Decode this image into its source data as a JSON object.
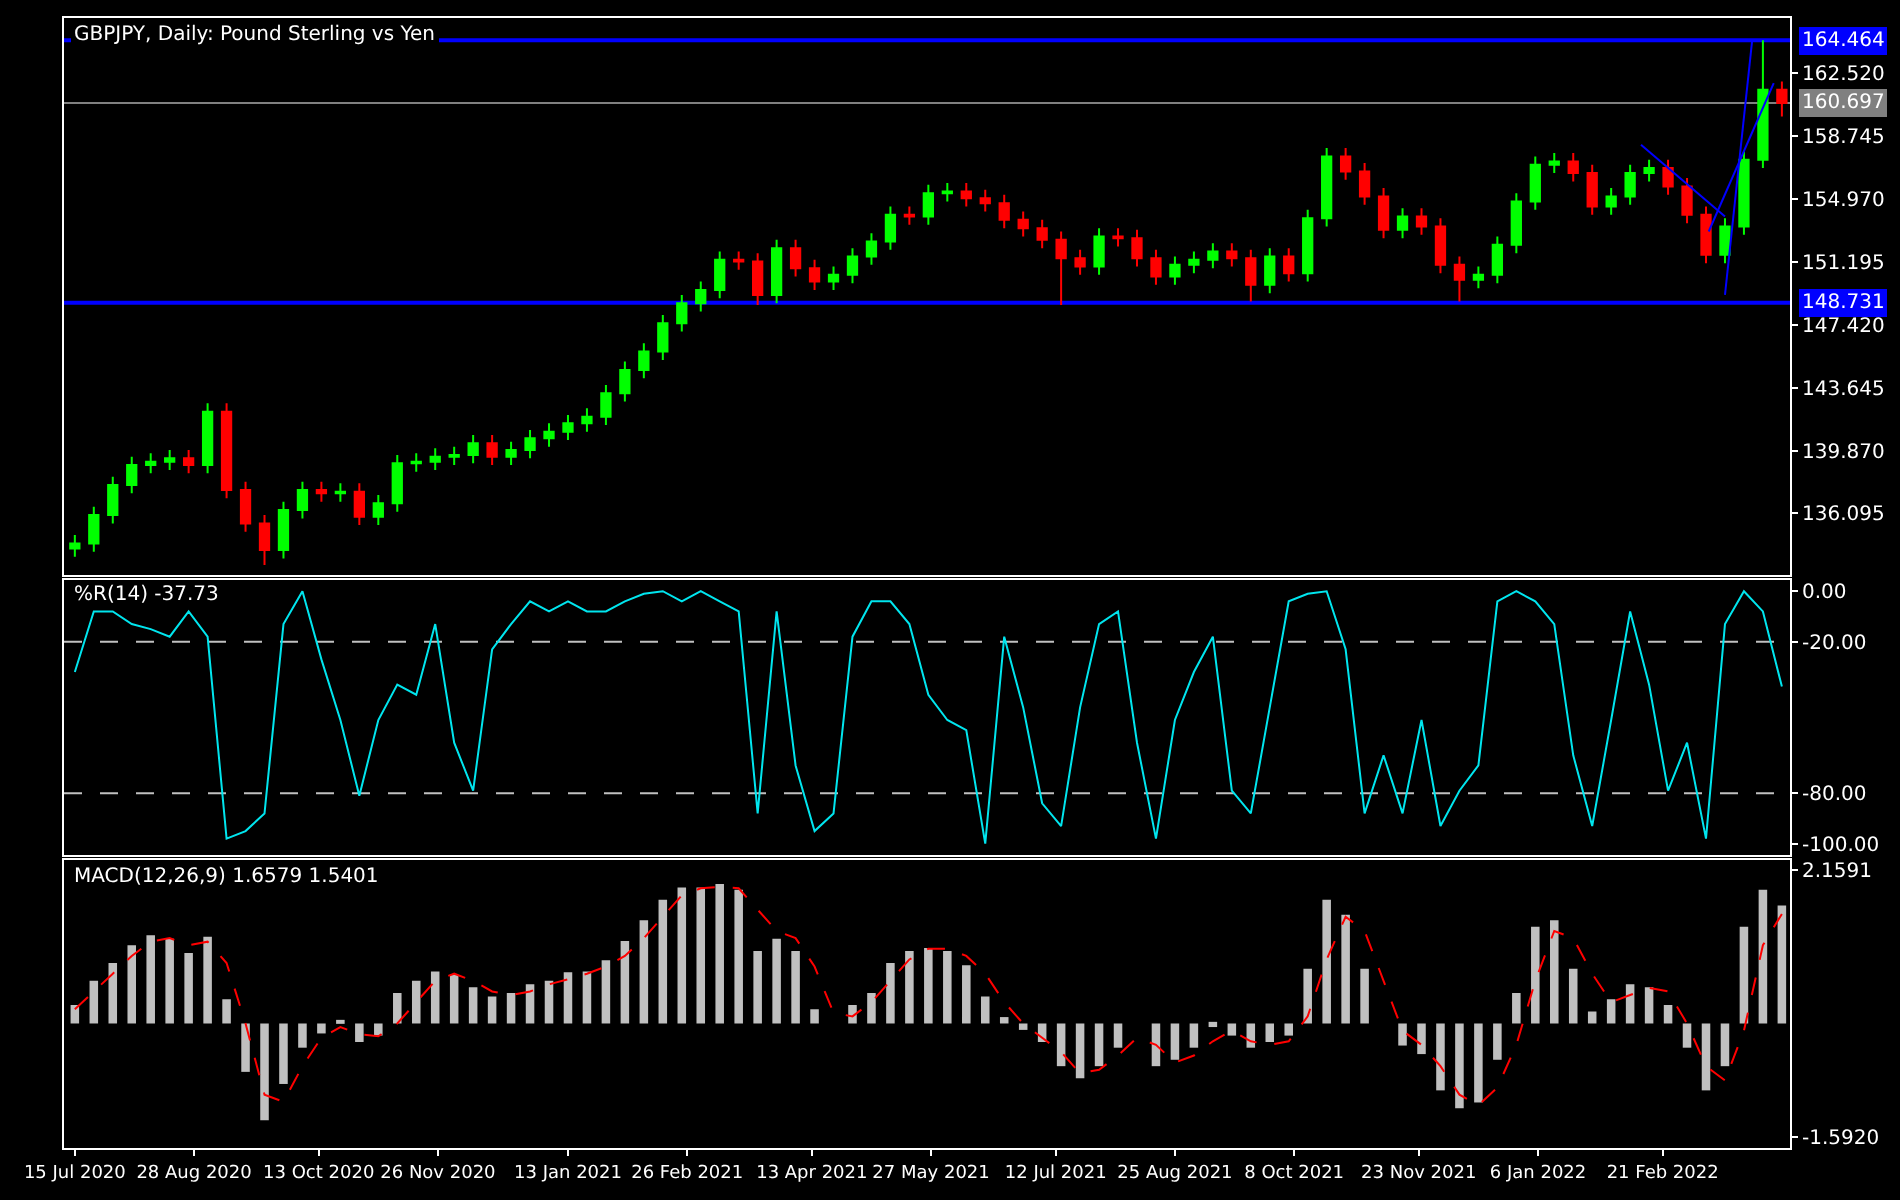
{
  "chart_data": [
    {
      "type": "candlestick",
      "title": "GBPJPY, Daily: Pound Sterling vs Yen",
      "tick_labels": "y",
      "x": [
        "2020-07-15",
        "2020-07-22",
        "2020-07-29",
        "2020-08-05",
        "2020-08-12",
        "2020-08-19",
        "2020-08-26",
        "2020-09-02",
        "2020-09-09",
        "2020-09-16",
        "2020-09-23",
        "2020-09-30",
        "2020-10-07",
        "2020-10-14",
        "2020-10-21",
        "2020-10-28",
        "2020-11-04",
        "2020-11-11",
        "2020-11-18",
        "2020-11-25",
        "2020-12-02",
        "2020-12-09",
        "2020-12-16",
        "2020-12-23",
        "2020-12-30",
        "2021-01-06",
        "2021-01-13",
        "2021-01-20",
        "2021-01-27",
        "2021-02-03",
        "2021-02-10",
        "2021-02-17",
        "2021-02-24",
        "2021-03-03",
        "2021-03-10",
        "2021-03-17",
        "2021-03-24",
        "2021-03-31",
        "2021-04-07",
        "2021-04-14",
        "2021-04-21",
        "2021-04-28",
        "2021-05-05",
        "2021-05-12",
        "2021-05-19",
        "2021-05-26",
        "2021-06-02",
        "2021-06-09",
        "2021-06-16",
        "2021-06-23",
        "2021-06-30",
        "2021-07-07",
        "2021-07-14",
        "2021-07-21",
        "2021-07-28",
        "2021-08-04",
        "2021-08-11",
        "2021-08-18",
        "2021-08-25",
        "2021-09-01",
        "2021-09-08",
        "2021-09-15",
        "2021-09-22",
        "2021-09-29",
        "2021-10-06",
        "2021-10-13",
        "2021-10-20",
        "2021-10-27",
        "2021-11-03",
        "2021-11-10",
        "2021-11-17",
        "2021-11-24",
        "2021-12-01",
        "2021-12-08",
        "2021-12-15",
        "2021-12-22",
        "2021-12-29",
        "2022-01-05",
        "2022-01-12",
        "2022-01-19",
        "2022-01-26",
        "2022-02-02",
        "2022-02-09",
        "2022-02-16",
        "2022-02-23",
        "2022-03-02",
        "2022-03-09",
        "2022-03-16",
        "2022-03-23",
        "2022-03-30",
        "2022-04-06"
      ],
      "ohlc": [
        [
          134.0,
          134.8,
          133.5,
          134.3
        ],
        [
          134.3,
          136.5,
          133.8,
          136.0
        ],
        [
          136.0,
          138.3,
          135.5,
          137.8
        ],
        [
          137.8,
          139.5,
          137.3,
          139.0
        ],
        [
          139.0,
          139.7,
          138.5,
          139.2
        ],
        [
          139.2,
          139.9,
          138.7,
          139.4
        ],
        [
          139.4,
          139.9,
          138.5,
          139.0
        ],
        [
          139.0,
          142.7,
          138.5,
          142.2
        ],
        [
          142.2,
          142.7,
          137.0,
          137.5
        ],
        [
          137.5,
          138.0,
          135.0,
          135.5
        ],
        [
          135.5,
          136.0,
          133.0,
          133.9
        ],
        [
          133.9,
          136.8,
          133.4,
          136.3
        ],
        [
          136.3,
          138.0,
          135.8,
          137.5
        ],
        [
          137.5,
          138.0,
          136.8,
          137.3
        ],
        [
          137.3,
          137.9,
          136.8,
          137.4
        ],
        [
          137.4,
          137.9,
          135.4,
          135.9
        ],
        [
          135.9,
          137.2,
          135.4,
          136.7
        ],
        [
          136.7,
          139.6,
          136.2,
          139.1
        ],
        [
          139.1,
          139.7,
          138.6,
          139.2
        ],
        [
          139.2,
          140.0,
          138.7,
          139.5
        ],
        [
          139.5,
          140.1,
          139.0,
          139.6
        ],
        [
          139.6,
          140.8,
          139.1,
          140.3
        ],
        [
          140.3,
          140.8,
          139.0,
          139.5
        ],
        [
          139.5,
          140.4,
          139.0,
          139.9
        ],
        [
          139.9,
          141.1,
          139.4,
          140.6
        ],
        [
          140.6,
          141.5,
          140.1,
          141.0
        ],
        [
          141.0,
          142.0,
          140.5,
          141.5
        ],
        [
          141.5,
          142.4,
          141.0,
          141.9
        ],
        [
          141.9,
          143.8,
          141.4,
          143.3
        ],
        [
          143.3,
          145.2,
          142.8,
          144.7
        ],
        [
          144.7,
          146.3,
          144.2,
          145.8
        ],
        [
          145.8,
          148.0,
          145.3,
          147.5
        ],
        [
          147.5,
          149.2,
          147.0,
          148.7
        ],
        [
          148.7,
          150.0,
          148.2,
          149.5
        ],
        [
          149.5,
          151.8,
          149.0,
          151.3
        ],
        [
          151.3,
          151.8,
          150.7,
          151.2
        ],
        [
          151.2,
          151.7,
          148.6,
          149.2
        ],
        [
          149.2,
          152.5,
          148.7,
          152.0
        ],
        [
          152.0,
          152.5,
          150.3,
          150.8
        ],
        [
          150.8,
          151.3,
          149.5,
          150.0
        ],
        [
          150.0,
          150.9,
          149.5,
          150.4
        ],
        [
          150.4,
          152.0,
          149.9,
          151.5
        ],
        [
          151.5,
          152.9,
          151.0,
          152.4
        ],
        [
          152.4,
          154.5,
          151.9,
          154.0
        ],
        [
          154.0,
          154.5,
          153.4,
          153.9
        ],
        [
          153.9,
          155.8,
          153.4,
          155.3
        ],
        [
          155.3,
          155.9,
          154.8,
          155.4
        ],
        [
          155.4,
          155.9,
          154.5,
          155.0
        ],
        [
          155.0,
          155.5,
          154.2,
          154.7
        ],
        [
          154.7,
          155.2,
          153.2,
          153.7
        ],
        [
          153.7,
          154.2,
          152.7,
          153.2
        ],
        [
          153.2,
          153.7,
          152.0,
          152.5
        ],
        [
          152.5,
          153.0,
          148.6,
          151.4
        ],
        [
          151.4,
          151.9,
          150.4,
          150.9
        ],
        [
          150.9,
          153.2,
          150.4,
          152.7
        ],
        [
          152.7,
          153.2,
          152.1,
          152.6
        ],
        [
          152.6,
          153.1,
          150.9,
          151.4
        ],
        [
          151.4,
          151.9,
          149.8,
          150.3
        ],
        [
          150.3,
          151.5,
          149.8,
          151.0
        ],
        [
          151.0,
          151.8,
          150.5,
          151.3
        ],
        [
          151.3,
          152.3,
          150.8,
          151.8
        ],
        [
          151.8,
          152.3,
          150.9,
          151.4
        ],
        [
          151.4,
          151.9,
          148.8,
          149.8
        ],
        [
          149.8,
          152.0,
          149.3,
          151.5
        ],
        [
          151.5,
          152.0,
          150.0,
          150.5
        ],
        [
          150.5,
          154.3,
          150.0,
          153.8
        ],
        [
          153.8,
          158.0,
          153.3,
          157.5
        ],
        [
          157.5,
          158.0,
          156.1,
          156.6
        ],
        [
          156.6,
          157.1,
          154.6,
          155.1
        ],
        [
          155.1,
          155.6,
          152.6,
          153.1
        ],
        [
          153.1,
          154.4,
          152.6,
          153.9
        ],
        [
          153.9,
          154.4,
          152.8,
          153.3
        ],
        [
          153.3,
          153.8,
          150.5,
          151.0
        ],
        [
          151.0,
          151.5,
          148.8,
          150.1
        ],
        [
          150.1,
          150.9,
          149.6,
          150.4
        ],
        [
          150.4,
          152.7,
          149.9,
          152.2
        ],
        [
          152.2,
          155.3,
          151.7,
          154.8
        ],
        [
          154.8,
          157.5,
          154.3,
          157.0
        ],
        [
          157.0,
          157.7,
          156.5,
          157.2
        ],
        [
          157.2,
          157.7,
          156.0,
          156.5
        ],
        [
          156.5,
          157.0,
          154.0,
          154.5
        ],
        [
          154.5,
          155.6,
          154.0,
          155.1
        ],
        [
          155.1,
          157.0,
          154.6,
          156.5
        ],
        [
          156.5,
          157.3,
          156.0,
          156.8
        ],
        [
          156.8,
          157.3,
          155.2,
          155.7
        ],
        [
          155.7,
          156.2,
          153.5,
          154.0
        ],
        [
          154.0,
          154.5,
          151.1,
          151.6
        ],
        [
          151.6,
          153.8,
          151.1,
          153.3
        ],
        [
          153.3,
          157.8,
          152.8,
          157.3
        ],
        [
          157.3,
          164.464,
          156.8,
          161.5
        ],
        [
          161.5,
          162.0,
          159.9,
          160.697
        ]
      ],
      "colors": [
        "#00ff00",
        "#00ff00",
        "#00ff00",
        "#00ff00",
        "#00ff00",
        "#00ff00",
        "#ff0000",
        "#00ff00",
        "#ff0000",
        "#ff0000",
        "#ff0000",
        "#00ff00",
        "#00ff00",
        "#ff0000",
        "#00ff00",
        "#ff0000",
        "#00ff00",
        "#00ff00",
        "#00ff00",
        "#00ff00",
        "#00ff00",
        "#00ff00",
        "#ff0000",
        "#00ff00",
        "#00ff00",
        "#00ff00",
        "#00ff00",
        "#00ff00",
        "#00ff00",
        "#00ff00",
        "#00ff00",
        "#00ff00",
        "#00ff00",
        "#00ff00",
        "#00ff00",
        "#ff0000",
        "#ff0000",
        "#00ff00",
        "#ff0000",
        "#ff0000",
        "#00ff00",
        "#00ff00",
        "#00ff00",
        "#00ff00",
        "#ff0000",
        "#00ff00",
        "#00ff00",
        "#ff0000",
        "#ff0000",
        "#ff0000",
        "#ff0000",
        "#ff0000",
        "#ff0000",
        "#ff0000",
        "#00ff00",
        "#ff0000",
        "#ff0000",
        "#ff0000",
        "#00ff00",
        "#00ff00",
        "#00ff00",
        "#ff0000",
        "#ff0000",
        "#00ff00",
        "#ff0000",
        "#00ff00",
        "#00ff00",
        "#ff0000",
        "#ff0000",
        "#ff0000",
        "#00ff00",
        "#ff0000",
        "#ff0000",
        "#ff0000",
        "#00ff00",
        "#00ff00",
        "#00ff00",
        "#00ff00",
        "#00ff00",
        "#ff0000",
        "#ff0000",
        "#00ff00",
        "#00ff00",
        "#00ff00",
        "#ff0000",
        "#ff0000",
        "#ff0000",
        "#00ff00",
        "#00ff00",
        "#00ff00",
        "#ff0000"
      ],
      "series": [
        {
          "type": "line",
          "color": "#0000ff",
          "x": [
            "2022-02-13",
            "2022-03-16"
          ],
          "values": [
            158.2,
            153.9
          ]
        },
        {
          "type": "line",
          "color": "#0000ff",
          "x": [
            "2022-03-16",
            "2022-03-26"
          ],
          "values": [
            149.2,
            164.4
          ]
        },
        {
          "type": "line",
          "color": "#0000ff",
          "x": [
            "2022-03-10",
            "2022-04-03"
          ],
          "values": [
            153.0,
            161.9
          ]
        }
      ],
      "xlim": [
        "2020-07-11",
        "2022-04-09"
      ],
      "ylim": [
        132.4,
        165.8
      ],
      "yticks": [
        {
          "value": 136.095,
          "label": "136.095"
        },
        {
          "value": 139.87,
          "label": "139.870"
        },
        {
          "value": 143.645,
          "label": "143.645"
        },
        {
          "value": 147.42,
          "label": "147.420"
        },
        {
          "value": 151.195,
          "label": "151.195"
        },
        {
          "value": 154.97,
          "label": "154.970"
        },
        {
          "value": 158.745,
          "label": "158.745"
        },
        {
          "value": 162.52,
          "label": "162.520"
        }
      ],
      "ref_lines": [
        {
          "axis": "y",
          "value": 164.464,
          "label": "164.464",
          "color": "#0000ff"
        },
        {
          "axis": "y",
          "value": 148.731,
          "label": "148.731",
          "color": "#0000ff"
        },
        {
          "axis": "y",
          "value": 160.697,
          "label": "160.697",
          "color": "#808080"
        }
      ]
    },
    {
      "type": "line",
      "title": "%R(14) -37.73",
      "tick_labels": "y",
      "x": [
        "2020-07-15",
        "2020-07-22",
        "2020-07-29",
        "2020-08-05",
        "2020-08-12",
        "2020-08-19",
        "2020-08-26",
        "2020-09-02",
        "2020-09-09",
        "2020-09-16",
        "2020-09-23",
        "2020-09-30",
        "2020-10-07",
        "2020-10-14",
        "2020-10-21",
        "2020-10-28",
        "2020-11-04",
        "2020-11-11",
        "2020-11-18",
        "2020-11-25",
        "2020-12-02",
        "2020-12-09",
        "2020-12-16",
        "2020-12-23",
        "2020-12-30",
        "2021-01-06",
        "2021-01-13",
        "2021-01-20",
        "2021-01-27",
        "2021-02-03",
        "2021-02-10",
        "2021-02-17",
        "2021-02-24",
        "2021-03-03",
        "2021-03-10",
        "2021-03-17",
        "2021-03-24",
        "2021-03-31",
        "2021-04-07",
        "2021-04-14",
        "2021-04-21",
        "2021-04-28",
        "2021-05-05",
        "2021-05-12",
        "2021-05-19",
        "2021-05-26",
        "2021-06-02",
        "2021-06-09",
        "2021-06-16",
        "2021-06-23",
        "2021-06-30",
        "2021-07-07",
        "2021-07-14",
        "2021-07-21",
        "2021-07-28",
        "2021-08-04",
        "2021-08-11",
        "2021-08-18",
        "2021-08-25",
        "2021-09-01",
        "2021-09-08",
        "2021-09-15",
        "2021-09-22",
        "2021-09-29",
        "2021-10-06",
        "2021-10-13",
        "2021-10-20",
        "2021-10-27",
        "2021-11-03",
        "2021-11-10",
        "2021-11-17",
        "2021-11-24",
        "2021-12-01",
        "2021-12-08",
        "2021-12-15",
        "2021-12-22",
        "2021-12-29",
        "2022-01-05",
        "2022-01-12",
        "2022-01-19",
        "2022-01-26",
        "2022-02-02",
        "2022-02-09",
        "2022-02-16",
        "2022-02-23",
        "2022-03-02",
        "2022-03-09",
        "2022-03-16",
        "2022-03-23",
        "2022-03-30",
        "2022-04-06"
      ],
      "series": [
        {
          "color": "#00e5ee",
          "values": [
            -32,
            -8,
            -8,
            -13,
            -15,
            -18,
            -8,
            -18,
            -98,
            -95,
            -88,
            -13,
            0,
            -27,
            -51,
            -81,
            -51,
            -37,
            -41,
            -13,
            -60,
            -79,
            -23,
            -13,
            -4,
            -8,
            -4,
            -8,
            -8,
            -4,
            -1,
            0,
            -4,
            0,
            -4,
            -8,
            -88,
            -8,
            -69,
            -95,
            -88,
            -18,
            -4,
            -4,
            -13,
            -41,
            -51,
            -55,
            -100,
            -18,
            -46,
            -84,
            -93,
            -46,
            -13,
            -8,
            -60,
            -98,
            -51,
            -32,
            -18,
            -79,
            -88,
            -46,
            -4,
            -1,
            0,
            -23,
            -88,
            -65,
            -88,
            -51,
            -93,
            -79,
            -69,
            -4,
            0,
            -4,
            -13,
            -65,
            -93,
            -51,
            -8,
            -37,
            -79,
            -60,
            -98,
            -13,
            0,
            -8,
            -37.73
          ]
        }
      ],
      "xlim": [
        "2020-07-11",
        "2022-04-09"
      ],
      "ylim": [
        -104.6,
        4.6
      ],
      "yticks": [
        {
          "value": 0,
          "label": "0.00"
        },
        {
          "value": -20,
          "label": "-20.00"
        },
        {
          "value": -80,
          "label": "-80.00"
        },
        {
          "value": -100,
          "label": "-100.00"
        }
      ],
      "ref_lines": [
        {
          "axis": "y",
          "value": -20,
          "label": null,
          "color": "#c0c0c0",
          "line_style": "dashed"
        },
        {
          "axis": "y",
          "value": -80,
          "label": null,
          "color": "#c0c0c0",
          "line_style": "dashed"
        }
      ]
    },
    {
      "type": "bar",
      "title": "MACD(12,26,9) 1.6579 1.5401",
      "x": [
        "2020-07-15",
        "2020-07-22",
        "2020-07-29",
        "2020-08-05",
        "2020-08-12",
        "2020-08-19",
        "2020-08-26",
        "2020-09-02",
        "2020-09-09",
        "2020-09-16",
        "2020-09-23",
        "2020-09-30",
        "2020-10-07",
        "2020-10-14",
        "2020-10-21",
        "2020-10-28",
        "2020-11-04",
        "2020-11-11",
        "2020-11-18",
        "2020-11-25",
        "2020-12-02",
        "2020-12-09",
        "2020-12-16",
        "2020-12-23",
        "2020-12-30",
        "2021-01-06",
        "2021-01-13",
        "2021-01-20",
        "2021-01-27",
        "2021-02-03",
        "2021-02-10",
        "2021-02-17",
        "2021-02-24",
        "2021-03-03",
        "2021-03-10",
        "2021-03-17",
        "2021-03-24",
        "2021-03-31",
        "2021-04-07",
        "2021-04-14",
        "2021-04-21",
        "2021-04-28",
        "2021-05-05",
        "2021-05-12",
        "2021-05-19",
        "2021-05-26",
        "2021-06-02",
        "2021-06-09",
        "2021-06-16",
        "2021-06-23",
        "2021-06-30",
        "2021-07-07",
        "2021-07-14",
        "2021-07-21",
        "2021-07-28",
        "2021-08-04",
        "2021-08-11",
        "2021-08-18",
        "2021-08-25",
        "2021-09-01",
        "2021-09-08",
        "2021-09-15",
        "2021-09-22",
        "2021-09-29",
        "2021-10-06",
        "2021-10-13",
        "2021-10-20",
        "2021-10-27",
        "2021-11-03",
        "2021-11-10",
        "2021-11-17",
        "2021-11-24",
        "2021-12-01",
        "2021-12-08",
        "2021-12-15",
        "2021-12-22",
        "2021-12-29",
        "2022-01-05",
        "2022-01-12",
        "2022-01-19",
        "2022-01-26",
        "2022-02-02",
        "2022-02-09",
        "2022-02-16",
        "2022-02-23",
        "2022-03-02",
        "2022-03-09",
        "2022-03-16",
        "2022-03-23",
        "2022-03-30",
        "2022-04-06"
      ],
      "series": [
        {
          "color": "#c0c0c0",
          "values": [
            0.26,
            0.6,
            0.85,
            1.1,
            1.24,
            1.19,
            0.99,
            1.22,
            0.34,
            -0.68,
            -1.36,
            -0.85,
            -0.34,
            -0.14,
            0.03,
            -0.26,
            -0.17,
            0.43,
            0.6,
            0.73,
            0.68,
            0.51,
            0.38,
            0.43,
            0.55,
            0.6,
            0.72,
            0.73,
            0.89,
            1.16,
            1.45,
            1.74,
            1.91,
            1.91,
            1.96,
            1.88,
            1.02,
            1.19,
            1.02,
            0.2,
            0.0,
            0.26,
            0.43,
            0.85,
            1.02,
            1.06,
            1.02,
            0.82,
            0.38,
            0.09,
            -0.09,
            -0.26,
            -0.6,
            -0.77,
            -0.6,
            -0.34,
            0.0,
            -0.6,
            -0.51,
            -0.34,
            -0.05,
            -0.17,
            -0.34,
            -0.26,
            -0.17,
            0.77,
            1.74,
            1.53,
            0.77,
            0.0,
            -0.31,
            -0.43,
            -0.94,
            -1.19,
            -1.11,
            -0.51,
            0.43,
            1.36,
            1.45,
            0.77,
            0.17,
            0.34,
            0.55,
            0.51,
            0.26,
            -0.34,
            -0.94,
            -0.6,
            1.36,
            1.88,
            1.6579
          ]
        },
        {
          "type": "line",
          "color": "#ff0000",
          "line_style": "dashed",
          "values": [
            0.2,
            0.45,
            0.7,
            0.95,
            1.15,
            1.2,
            1.1,
            1.15,
            0.85,
            0.0,
            -1.0,
            -1.1,
            -0.6,
            -0.2,
            -0.05,
            -0.15,
            -0.18,
            0.0,
            0.3,
            0.6,
            0.7,
            0.6,
            0.45,
            0.4,
            0.45,
            0.55,
            0.62,
            0.7,
            0.8,
            0.95,
            1.2,
            1.5,
            1.8,
            1.9,
            1.92,
            1.9,
            1.6,
            1.3,
            1.2,
            0.8,
            0.15,
            0.1,
            0.3,
            0.6,
            0.9,
            1.05,
            1.05,
            0.95,
            0.7,
            0.3,
            0.0,
            -0.2,
            -0.4,
            -0.7,
            -0.65,
            -0.45,
            -0.2,
            -0.3,
            -0.55,
            -0.45,
            -0.25,
            -0.1,
            -0.25,
            -0.3,
            -0.25,
            0.1,
            0.9,
            1.5,
            1.3,
            0.6,
            -0.1,
            -0.3,
            -0.6,
            -1.0,
            -1.15,
            -0.9,
            -0.3,
            0.6,
            1.3,
            1.2,
            0.7,
            0.3,
            0.4,
            0.5,
            0.45,
            0.0,
            -0.6,
            -0.8,
            -0.1,
            1.1,
            1.5401
          ]
        }
      ],
      "xlim": [
        "2020-07-11",
        "2022-04-09"
      ],
      "xticks": [
        {
          "value": "2020-07-15",
          "label": "15 Jul 2020"
        },
        {
          "value": "2020-08-28",
          "label": "28 Aug 2020"
        },
        {
          "value": "2020-10-13",
          "label": "13 Oct 2020"
        },
        {
          "value": "2020-11-26",
          "label": "26 Nov 2020"
        },
        {
          "value": "2021-01-13",
          "label": "13 Jan 2021"
        },
        {
          "value": "2021-02-26",
          "label": "26 Feb 2021"
        },
        {
          "value": "2021-04-13",
          "label": "13 Apr 2021"
        },
        {
          "value": "2021-05-27",
          "label": "27 May 2021"
        },
        {
          "value": "2021-07-12",
          "label": "12 Jul 2021"
        },
        {
          "value": "2021-08-25",
          "label": "25 Aug 2021"
        },
        {
          "value": "2021-10-08",
          "label": "8 Oct 2021"
        },
        {
          "value": "2021-11-23",
          "label": "23 Nov 2021"
        },
        {
          "value": "2022-01-06",
          "label": "6 Jan 2022"
        },
        {
          "value": "2022-02-21",
          "label": "21 Feb 2022"
        }
      ],
      "ylim": [
        -1.75,
        2.3
      ],
      "yticks": [
        {
          "value": 2.1591,
          "label": "2.1591"
        },
        {
          "value": -1.592,
          "label": "-1.5920"
        }
      ]
    }
  ]
}
